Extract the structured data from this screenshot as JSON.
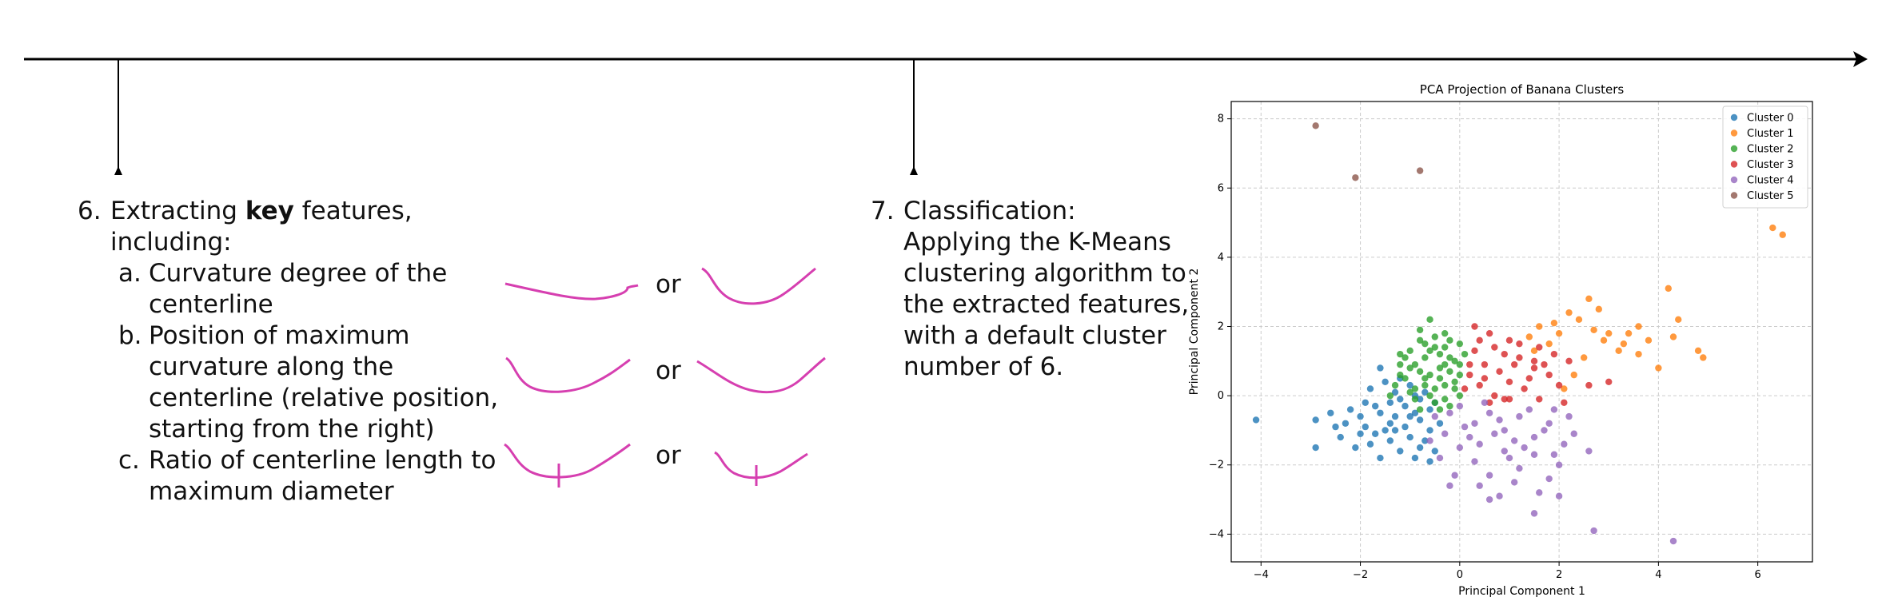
{
  "step6": {
    "number": "6.",
    "title_prefix": "Extracting ",
    "title_bold": "key",
    "title_suffix": " features,",
    "title_line2": "including:",
    "items": [
      {
        "marker": "a.",
        "lines": [
          "Curvature degree of the",
          "centerline"
        ]
      },
      {
        "marker": "b.",
        "lines": [
          "Position of maximum",
          "curvature along the",
          "centerline (relative position,",
          "starting from the right)"
        ]
      },
      {
        "marker": "c.",
        "lines": [
          "Ratio of centerline length to",
          "maximum diameter"
        ]
      }
    ],
    "or_label": "or"
  },
  "step7": {
    "number": "7.",
    "lines": [
      "Classification:",
      "Applying the K-Means",
      "clustering algorithm to",
      "the extracted features,",
      "with a default cluster",
      "number of 6."
    ]
  },
  "colors": {
    "sketch": "#d63fb0",
    "timeline": "#000000"
  },
  "chart_data": {
    "type": "scatter",
    "title": "PCA Projection of Banana Clusters",
    "xlabel": "Principal Component 1",
    "ylabel": "Principal Component 2",
    "xlim": [
      -4.6,
      7.1
    ],
    "ylim": [
      -4.8,
      8.5
    ],
    "xticks": [
      -4,
      -2,
      0,
      2,
      4,
      6
    ],
    "yticks": [
      -4,
      -2,
      0,
      2,
      4,
      6,
      8
    ],
    "grid": true,
    "legend_position": "top-right",
    "series": [
      {
        "name": "Cluster 0",
        "color": "#1f77b4",
        "points": [
          [
            -4.1,
            -0.7
          ],
          [
            -2.9,
            -0.7
          ],
          [
            -2.9,
            -1.5
          ],
          [
            -2.6,
            -0.5
          ],
          [
            -2.5,
            -0.9
          ],
          [
            -2.4,
            -1.2
          ],
          [
            -2.2,
            -0.4
          ],
          [
            -2.1,
            -1.5
          ],
          [
            -2.0,
            -0.6
          ],
          [
            -1.9,
            -0.9
          ],
          [
            -1.8,
            0.2
          ],
          [
            -1.8,
            -1.4
          ],
          [
            -1.7,
            -0.3
          ],
          [
            -1.6,
            0.8
          ],
          [
            -1.6,
            -0.5
          ],
          [
            -1.5,
            -1.0
          ],
          [
            -1.5,
            0.4
          ],
          [
            -1.4,
            -0.2
          ],
          [
            -1.4,
            -1.3
          ],
          [
            -1.3,
            0.1
          ],
          [
            -1.3,
            -0.6
          ],
          [
            -1.2,
            -1.6
          ],
          [
            -1.2,
            0.5
          ],
          [
            -1.1,
            -0.3
          ],
          [
            -1.1,
            -0.9
          ],
          [
            -1.0,
            0.3
          ],
          [
            -1.0,
            -1.2
          ],
          [
            -0.9,
            -0.5
          ],
          [
            -0.9,
            -1.8
          ],
          [
            -0.8,
            -0.1
          ],
          [
            -0.8,
            -0.7
          ],
          [
            -0.7,
            -1.3
          ],
          [
            -0.7,
            0.1
          ],
          [
            -0.6,
            -0.4
          ],
          [
            -0.6,
            -1.0
          ],
          [
            -0.5,
            -1.6
          ],
          [
            -0.5,
            -0.2
          ],
          [
            -0.4,
            -0.8
          ],
          [
            -1.7,
            -1.1
          ],
          [
            -2.3,
            -0.8
          ],
          [
            -1.9,
            -0.2
          ],
          [
            -1.2,
            -0.1
          ],
          [
            -1.0,
            -0.6
          ],
          [
            -0.8,
            -1.5
          ],
          [
            -0.6,
            -1.9
          ],
          [
            -1.4,
            -0.8
          ],
          [
            -2.0,
            -1.1
          ],
          [
            -1.6,
            -1.8
          ],
          [
            -1.3,
            -1.0
          ],
          [
            -0.9,
            0.0
          ]
        ]
      },
      {
        "name": "Cluster 1",
        "color": "#ff7f0e",
        "points": [
          [
            6.3,
            4.85
          ],
          [
            6.5,
            4.65
          ],
          [
            4.2,
            3.1
          ],
          [
            2.6,
            2.8
          ],
          [
            2.8,
            2.5
          ],
          [
            2.2,
            2.4
          ],
          [
            3.0,
            1.8
          ],
          [
            3.4,
            1.8
          ],
          [
            4.3,
            1.7
          ],
          [
            4.8,
            1.3
          ],
          [
            4.9,
            1.1
          ],
          [
            3.8,
            1.6
          ],
          [
            3.2,
            1.3
          ],
          [
            2.4,
            2.2
          ],
          [
            2.0,
            1.8
          ],
          [
            1.8,
            1.5
          ],
          [
            1.6,
            2.0
          ],
          [
            1.4,
            1.7
          ],
          [
            2.9,
            1.6
          ],
          [
            3.6,
            2.0
          ],
          [
            4.0,
            0.8
          ],
          [
            3.6,
            1.2
          ],
          [
            2.5,
            1.1
          ],
          [
            2.3,
            0.6
          ],
          [
            2.1,
            0.2
          ],
          [
            2.7,
            1.9
          ],
          [
            3.3,
            1.5
          ],
          [
            4.4,
            2.2
          ],
          [
            1.9,
            2.1
          ],
          [
            1.5,
            1.3
          ]
        ]
      },
      {
        "name": "Cluster 2",
        "color": "#2ca02c",
        "points": [
          [
            -0.6,
            2.2
          ],
          [
            -1.0,
            1.3
          ],
          [
            -1.2,
            0.9
          ],
          [
            -0.8,
            1.6
          ],
          [
            -0.5,
            1.4
          ],
          [
            -0.3,
            1.8
          ],
          [
            0.0,
            1.5
          ],
          [
            -0.2,
            1.1
          ],
          [
            -0.4,
            0.8
          ],
          [
            -0.7,
            0.5
          ],
          [
            -0.9,
            0.2
          ],
          [
            -1.1,
            0.5
          ],
          [
            -0.6,
            0.0
          ],
          [
            -0.3,
            0.3
          ],
          [
            0.0,
            0.6
          ],
          [
            -0.1,
            1.0
          ],
          [
            -0.5,
            -0.2
          ],
          [
            -0.8,
            -0.4
          ],
          [
            -0.2,
            -0.3
          ],
          [
            0.0,
            0.0
          ],
          [
            -1.3,
            0.3
          ],
          [
            -1.0,
            0.8
          ],
          [
            -0.7,
            1.1
          ],
          [
            -0.4,
            1.2
          ],
          [
            -0.2,
            0.7
          ],
          [
            -0.1,
            0.2
          ],
          [
            -0.6,
            0.6
          ],
          [
            -0.9,
            0.9
          ],
          [
            -1.2,
            0.6
          ],
          [
            -0.3,
            -0.1
          ],
          [
            -0.5,
            1.7
          ],
          [
            -0.8,
            1.9
          ],
          [
            -1.1,
            1.1
          ],
          [
            -0.4,
            0.5
          ],
          [
            -0.7,
            0.3
          ],
          [
            0.1,
            1.2
          ],
          [
            -0.2,
            1.6
          ],
          [
            -1.4,
            0.0
          ],
          [
            -0.9,
            -0.1
          ],
          [
            -0.6,
            1.3
          ],
          [
            -0.3,
            0.9
          ],
          [
            -0.5,
            0.2
          ],
          [
            -0.8,
            0.7
          ],
          [
            -1.0,
            0.1
          ],
          [
            -0.1,
            0.4
          ],
          [
            -0.4,
            -0.4
          ],
          [
            -1.2,
            1.2
          ],
          [
            -0.7,
            1.5
          ],
          [
            -0.3,
            1.4
          ],
          [
            0.0,
            0.9
          ]
        ]
      },
      {
        "name": "Cluster 3",
        "color": "#d62728",
        "points": [
          [
            0.3,
            2.0
          ],
          [
            0.6,
            1.8
          ],
          [
            1.0,
            1.6
          ],
          [
            1.2,
            1.1
          ],
          [
            1.5,
            0.8
          ],
          [
            1.8,
            0.6
          ],
          [
            2.0,
            0.3
          ],
          [
            2.2,
            1.0
          ],
          [
            2.6,
            0.3
          ],
          [
            3.0,
            0.4
          ],
          [
            1.6,
            1.4
          ],
          [
            0.9,
            1.2
          ],
          [
            0.5,
            0.9
          ],
          [
            0.2,
            0.6
          ],
          [
            0.4,
            0.3
          ],
          [
            0.7,
            0.0
          ],
          [
            1.0,
            0.4
          ],
          [
            1.3,
            0.2
          ],
          [
            1.6,
            -0.1
          ],
          [
            0.8,
            0.7
          ],
          [
            0.3,
            1.3
          ],
          [
            0.1,
            0.2
          ],
          [
            0.6,
            -0.2
          ],
          [
            1.1,
            0.9
          ],
          [
            1.4,
            0.5
          ],
          [
            1.9,
            1.2
          ],
          [
            2.1,
            -0.2
          ],
          [
            0.9,
            -0.1
          ],
          [
            0.4,
            1.6
          ],
          [
            0.2,
            0.9
          ],
          [
            1.7,
            0.9
          ],
          [
            1.2,
            1.5
          ],
          [
            0.7,
            1.4
          ],
          [
            0.5,
            0.5
          ],
          [
            1.0,
            -0.1
          ],
          [
            1.5,
            1.0
          ]
        ]
      },
      {
        "name": "Cluster 4",
        "color": "#9467bd",
        "points": [
          [
            -0.5,
            -0.6
          ],
          [
            0.0,
            -0.3
          ],
          [
            0.3,
            -0.8
          ],
          [
            0.6,
            -0.5
          ],
          [
            0.9,
            -1.0
          ],
          [
            1.2,
            -0.6
          ],
          [
            1.5,
            -1.2
          ],
          [
            1.8,
            -0.8
          ],
          [
            2.1,
            -1.4
          ],
          [
            2.0,
            -2.0
          ],
          [
            2.0,
            -2.9
          ],
          [
            1.5,
            -3.4
          ],
          [
            2.6,
            -1.6
          ],
          [
            2.7,
            -3.9
          ],
          [
            4.3,
            -4.2
          ],
          [
            -0.3,
            -1.1
          ],
          [
            0.0,
            -1.5
          ],
          [
            0.3,
            -1.9
          ],
          [
            0.6,
            -2.3
          ],
          [
            0.9,
            -1.6
          ],
          [
            1.2,
            -2.1
          ],
          [
            1.5,
            -1.7
          ],
          [
            1.8,
            -2.4
          ],
          [
            -0.4,
            -1.8
          ],
          [
            -0.1,
            -2.3
          ],
          [
            0.4,
            -2.6
          ],
          [
            0.8,
            -2.9
          ],
          [
            1.1,
            -2.5
          ],
          [
            0.2,
            -1.2
          ],
          [
            0.5,
            -0.2
          ],
          [
            0.8,
            -0.7
          ],
          [
            1.1,
            -1.3
          ],
          [
            1.4,
            -0.4
          ],
          [
            1.7,
            -1.0
          ],
          [
            1.9,
            -1.7
          ],
          [
            2.3,
            -1.1
          ],
          [
            -0.2,
            -0.5
          ],
          [
            0.1,
            -0.9
          ],
          [
            0.4,
            -1.4
          ],
          [
            0.7,
            -1.1
          ],
          [
            1.0,
            -1.8
          ],
          [
            1.3,
            -1.5
          ],
          [
            -0.6,
            -1.3
          ],
          [
            -0.2,
            -2.6
          ],
          [
            1.6,
            -2.8
          ],
          [
            0.6,
            -3.0
          ],
          [
            1.9,
            -0.4
          ],
          [
            2.2,
            -0.6
          ]
        ]
      },
      {
        "name": "Cluster 5",
        "color": "#8c564b",
        "points": [
          [
            -2.9,
            7.8
          ],
          [
            -2.1,
            6.3
          ],
          [
            -0.8,
            6.5
          ]
        ]
      }
    ]
  }
}
